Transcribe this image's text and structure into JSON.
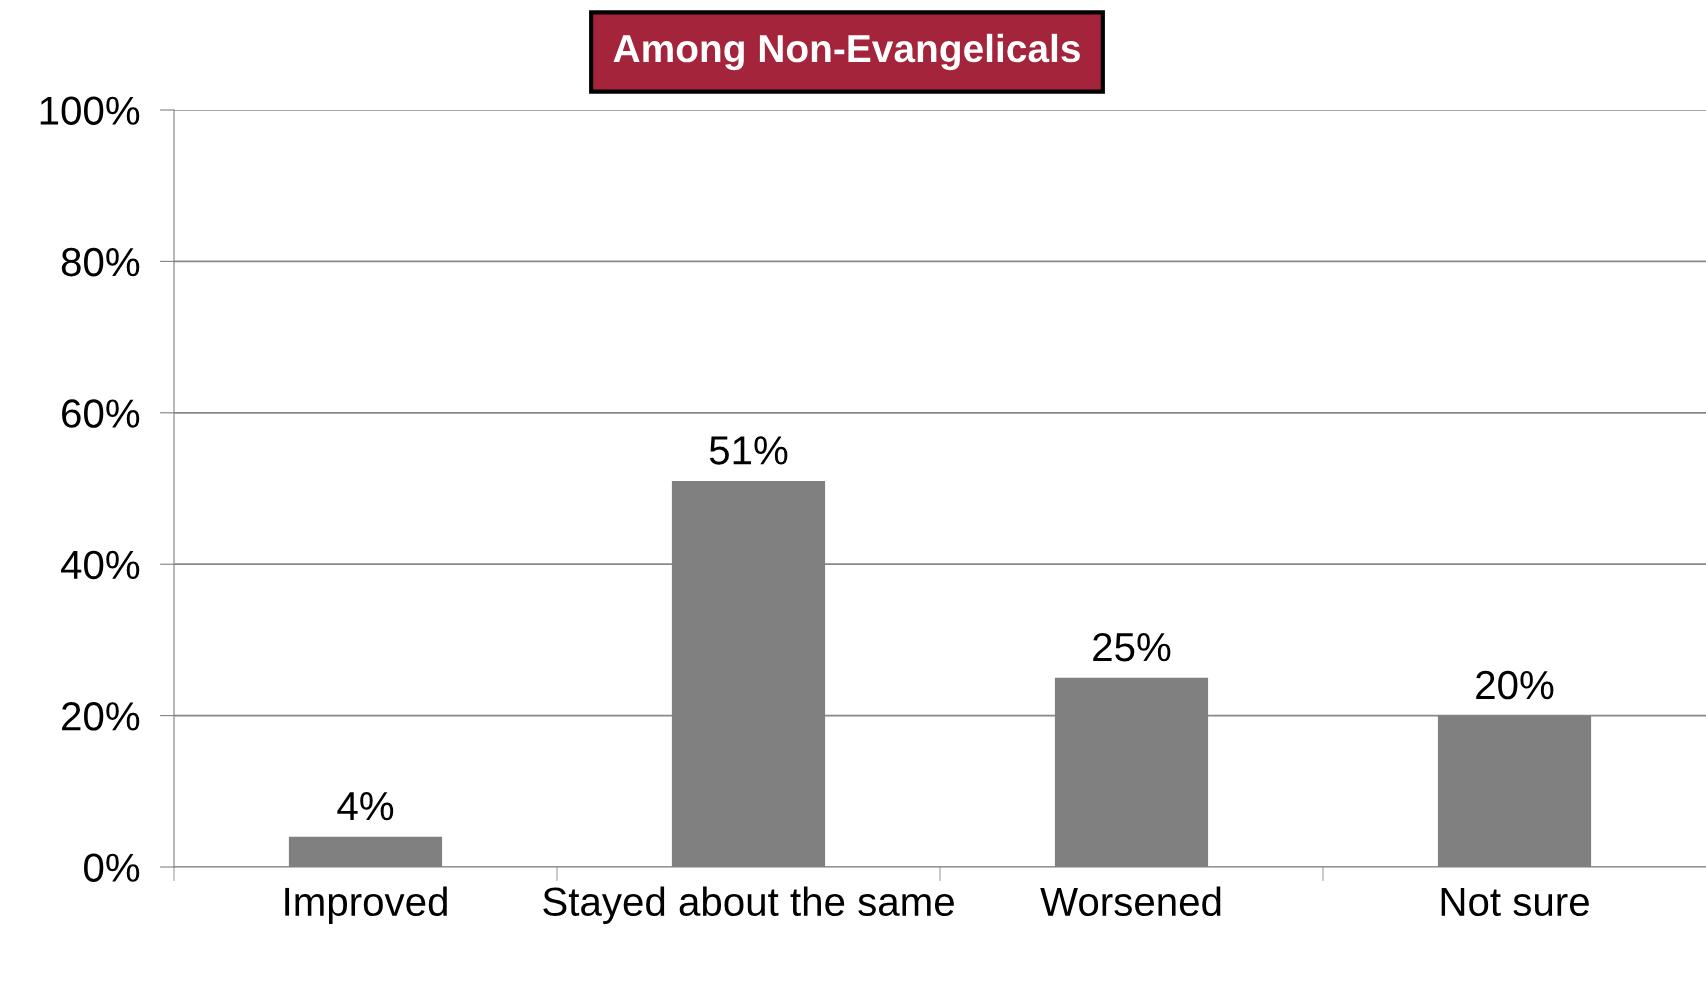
{
  "chart_data": {
    "type": "bar",
    "title": "Among Non-Evangelicals",
    "categories": [
      "Improved",
      "Stayed about the same",
      "Worsened",
      "Not sure"
    ],
    "values": [
      4,
      51,
      25,
      20
    ],
    "color": "#808080",
    "value_labels": [
      "4%",
      "51%",
      "25%",
      "20%"
    ],
    "ylim": [
      0,
      100
    ],
    "yticks": [
      {
        "value": 0,
        "label": "0%"
      },
      {
        "value": 20,
        "label": "20%"
      },
      {
        "value": 40,
        "label": "40%"
      },
      {
        "value": 60,
        "label": "60%"
      },
      {
        "value": 80,
        "label": "80%"
      },
      {
        "value": 100,
        "label": "100%"
      }
    ],
    "grid": "y",
    "legend": false
  }
}
